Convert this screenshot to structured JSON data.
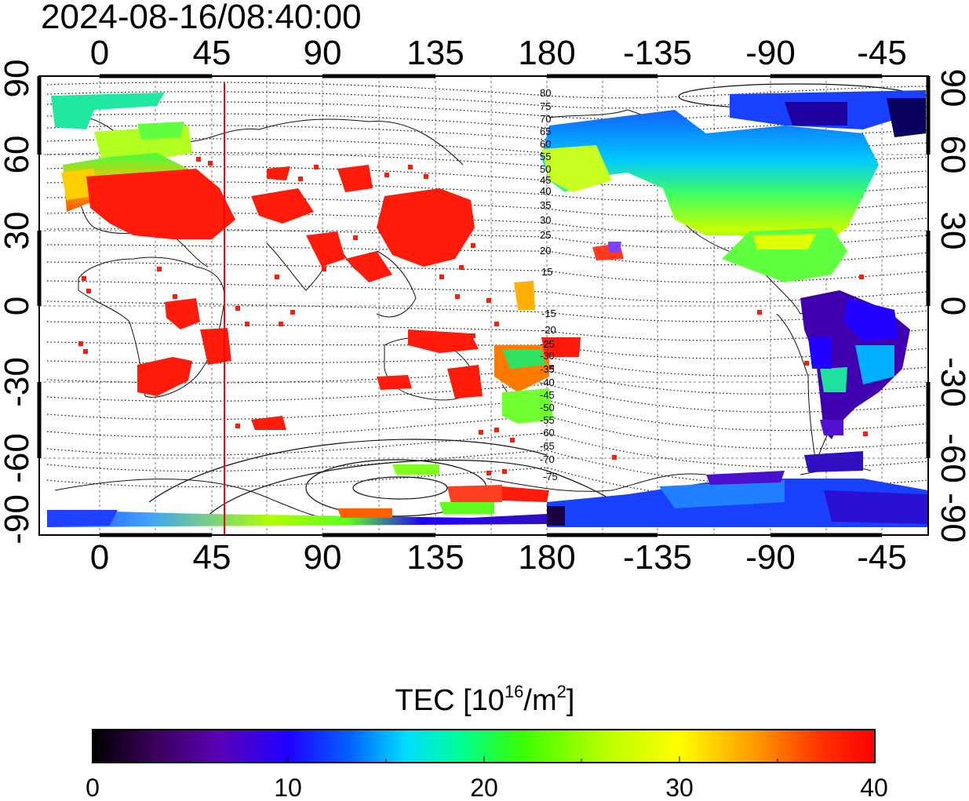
{
  "timestamp": "2024-08-16/08:40:00",
  "top_axis_labels": [
    "0",
    "45",
    "90",
    "135",
    "180",
    "-135",
    "-90",
    "-45"
  ],
  "bottom_axis_labels": [
    "0",
    "45",
    "90",
    "135",
    "180",
    "-135",
    "-90",
    "-45"
  ],
  "left_axis_labels": [
    "90",
    "60",
    "30",
    "0",
    "-30",
    "-60",
    "-90"
  ],
  "right_axis_labels": [
    "90",
    "60",
    "30",
    "0",
    "-30",
    "-60",
    "-90"
  ],
  "contour_labels_north": [
    "80",
    "75",
    "70",
    "65",
    "60",
    "55",
    "50",
    "45",
    "40",
    "35",
    "30",
    "25",
    "20",
    "15"
  ],
  "contour_labels_south": [
    "-15",
    "-20",
    "-25",
    "-30",
    "-35",
    "-40",
    "-45",
    "-50",
    "-55",
    "-60",
    "-65",
    "-70",
    "-75"
  ],
  "red_meridian_longitude": 50,
  "colorbar": {
    "title_main": "TEC  [10",
    "title_sup1": "16",
    "title_mid": "/m",
    "title_sup2": "2",
    "title_end": "]",
    "min": 0,
    "max": 40,
    "tick_labels": [
      "0",
      "10",
      "20",
      "30",
      "40"
    ],
    "stops": [
      "#000000",
      "#3a005a",
      "#5a00b4",
      "#2000ff",
      "#0064ff",
      "#00dcff",
      "#00ff96",
      "#3cff00",
      "#b4ff00",
      "#ffff00",
      "#ff9600",
      "#ff3200",
      "#ff0000"
    ]
  },
  "colors": {
    "red_data": "#ff1a0a",
    "meridian": "#ff0000"
  }
}
